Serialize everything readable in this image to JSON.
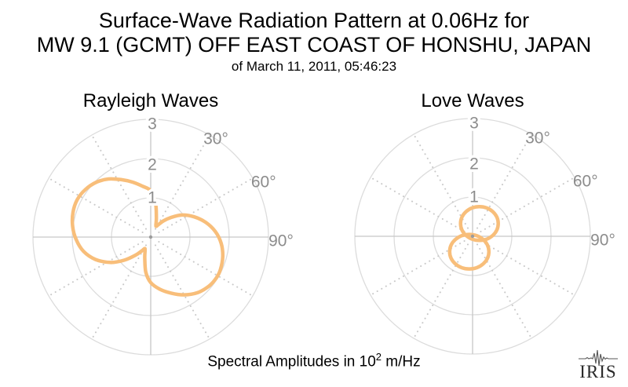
{
  "title": {
    "line1": "Surface-Wave Radiation Pattern at 0.06Hz for",
    "line2": "MW 9.1 (GCMT) OFF EAST COAST OF HONSHU, JAPAN",
    "line3": "of March 11, 2011, 05:46:23"
  },
  "caption": {
    "prefix": "Spectral Amplitudes in 10",
    "exponent": "2",
    "suffix": " m/Hz"
  },
  "logo": {
    "text": "IRIS"
  },
  "colors": {
    "curve": "#f8be7a",
    "grid_circle": "#dcdcdc",
    "axis_line": "#c6c6c6",
    "spoke_dot": "#c9c9c9",
    "tick_label": "#8c8c8c",
    "center_dot": "#9c9c9c",
    "title_text": "#000000",
    "logo_ink": "#2a2a2a"
  },
  "chart_data": [
    {
      "type": "polar",
      "title": "Rayleigh Waves",
      "units": "10^2 m/Hz",
      "r_ticks": [
        1,
        2,
        3
      ],
      "r_max": 3,
      "theta_tick_labels": [
        {
          "label": "30°",
          "deg": 30
        },
        {
          "label": "60°",
          "deg": 60
        },
        {
          "label": "90°",
          "deg": 90
        }
      ],
      "series": {
        "name": "rayleigh-radiation-pattern",
        "azimuth_deg": [
          0,
          8,
          16,
          23,
          27,
          31,
          38,
          46,
          55,
          65,
          75,
          85,
          95,
          105,
          115,
          122,
          130,
          140,
          150,
          160,
          170,
          180,
          188,
          196,
          203,
          208,
          213,
          220,
          229,
          238,
          248,
          258,
          268,
          278,
          288,
          297,
          306,
          315,
          324,
          333,
          342,
          351
        ],
        "amplitude": [
          1.18,
          0.88,
          0.52,
          0.34,
          0.31,
          0.36,
          0.52,
          0.72,
          0.98,
          1.22,
          1.45,
          1.65,
          1.8,
          1.9,
          1.96,
          1.97,
          1.94,
          1.85,
          1.7,
          1.52,
          1.35,
          1.16,
          0.9,
          0.55,
          0.37,
          0.33,
          0.42,
          0.6,
          0.9,
          1.22,
          1.52,
          1.75,
          1.9,
          2.01,
          2.08,
          2.1,
          2.06,
          1.97,
          1.83,
          1.64,
          1.47,
          1.31
        ],
        "lobe_maxima": [
          {
            "azimuth_deg": 297,
            "amplitude": 2.1
          },
          {
            "azimuth_deg": 120,
            "amplitude": 1.97
          }
        ],
        "notch_minima": [
          {
            "azimuth_deg": 27,
            "amplitude": 0.31
          },
          {
            "azimuth_deg": 208,
            "amplitude": 0.33
          }
        ]
      }
    },
    {
      "type": "polar",
      "title": "Love Waves",
      "units": "10^2 m/Hz",
      "r_ticks": [
        1,
        2,
        3
      ],
      "r_max": 3,
      "theta_tick_labels": [
        {
          "label": "30°",
          "deg": 30
        },
        {
          "label": "60°",
          "deg": 60
        },
        {
          "label": "90°",
          "deg": 90
        }
      ],
      "series": {
        "name": "love-radiation-pattern",
        "lobes": [
          {
            "azimuth_deg": 28,
            "peak_amplitude": 0.82,
            "ellipse": {
              "cx": 0.174,
              "cy": 0.324,
              "rx": 0.48,
              "ry": 0.43
            }
          },
          {
            "azimuth_deg": 191,
            "peak_amplitude": 0.84,
            "ellipse": {
              "cx": -0.084,
              "cy": -0.393,
              "rx": 0.5,
              "ry": 0.44
            }
          }
        ]
      }
    }
  ]
}
